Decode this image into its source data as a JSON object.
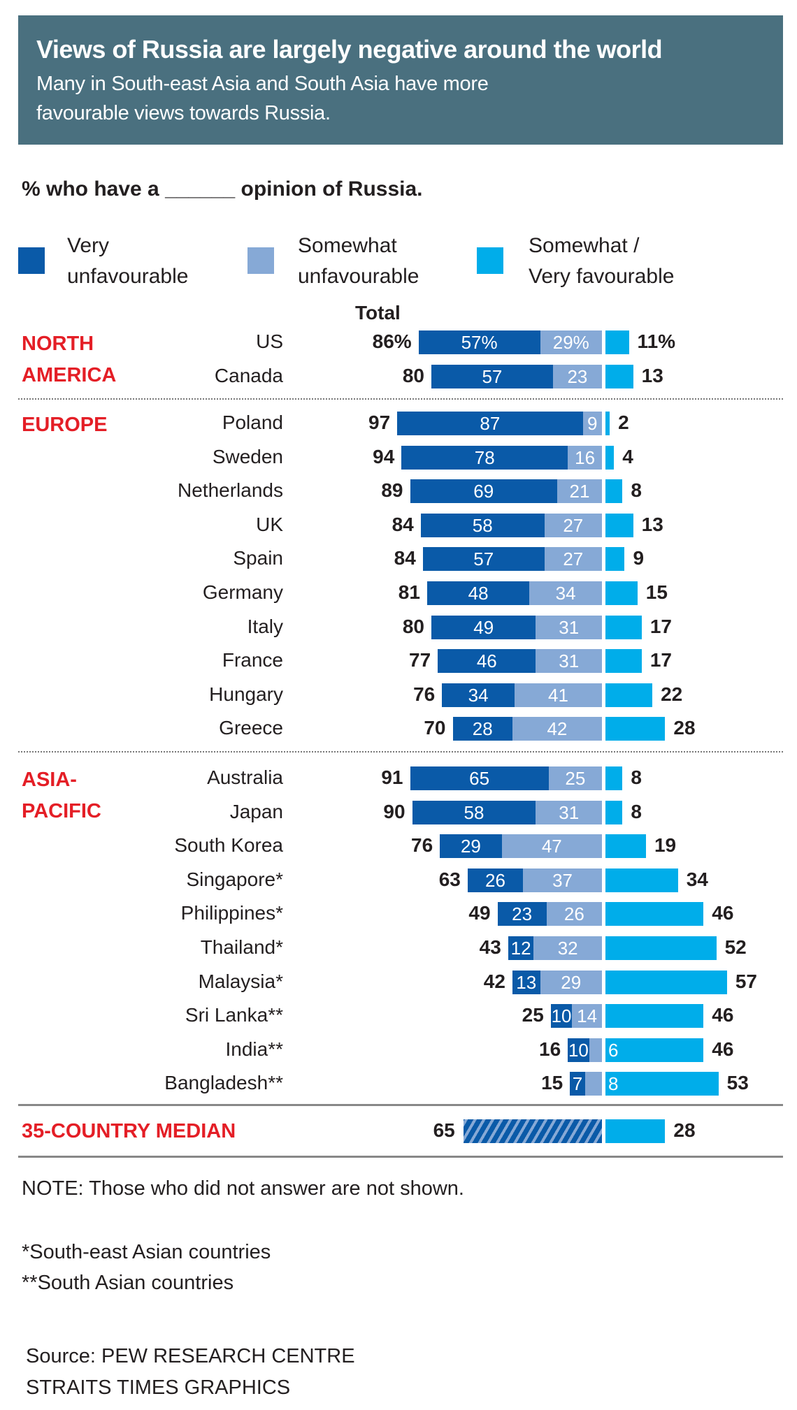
{
  "header": {
    "title": "Views of Russia are largely negative around the world",
    "subtitle_lines": [
      "Many in South-east Asia and South Asia have more",
      "favourable views towards Russia."
    ]
  },
  "question": "% who have a ______ opinion of Russia.",
  "colors": {
    "very_unfav": "#0a5aa8",
    "somewhat_unfav": "#86a9d6",
    "favourable": "#00adea",
    "region": "#e41e26",
    "header_bg": "#4a707f"
  },
  "legend": [
    {
      "lines": [
        "Very",
        "unfavourable"
      ]
    },
    {
      "lines": [
        "Somewhat",
        "unfavourable"
      ]
    },
    {
      "lines": [
        "Somewhat /",
        "Very favourable"
      ]
    }
  ],
  "total_label": "Total",
  "chart_data": {
    "type": "bar",
    "subtype": "diverging stacked horizontal bar",
    "series": [
      {
        "name": "Very unfavourable"
      },
      {
        "name": "Somewhat unfavourable"
      },
      {
        "name": "Somewhat / Very favourable"
      }
    ],
    "groups": [
      {
        "region": "NORTH AMERICA",
        "rows": [
          {
            "country": "US",
            "total": "86%",
            "very": 57,
            "very_label": "57%",
            "somewhat": 29,
            "somewhat_label": "29%",
            "fav": 11,
            "fav_label": "11%"
          },
          {
            "country": "Canada",
            "total": "80",
            "very": 57,
            "somewhat": 23,
            "fav": 13
          }
        ]
      },
      {
        "region": "EUROPE",
        "rows": [
          {
            "country": "Poland",
            "total": "97",
            "very": 87,
            "somewhat": 9,
            "fav": 2
          },
          {
            "country": "Sweden",
            "total": "94",
            "very": 78,
            "somewhat": 16,
            "fav": 4
          },
          {
            "country": "Netherlands",
            "total": "89",
            "very": 69,
            "somewhat": 21,
            "fav": 8
          },
          {
            "country": "UK",
            "total": "84",
            "very": 58,
            "somewhat": 27,
            "fav": 13
          },
          {
            "country": "Spain",
            "total": "84",
            "very": 57,
            "somewhat": 27,
            "fav": 9
          },
          {
            "country": "Germany",
            "total": "81",
            "very": 48,
            "somewhat": 34,
            "fav": 15
          },
          {
            "country": "Italy",
            "total": "80",
            "very": 49,
            "somewhat": 31,
            "fav": 17
          },
          {
            "country": "France",
            "total": "77",
            "very": 46,
            "somewhat": 31,
            "fav": 17
          },
          {
            "country": "Hungary",
            "total": "76",
            "very": 34,
            "somewhat": 41,
            "fav": 22
          },
          {
            "country": "Greece",
            "total": "70",
            "very": 28,
            "somewhat": 42,
            "fav": 28
          }
        ]
      },
      {
        "region": "ASIA-PACIFIC",
        "rows": [
          {
            "country": "Australia",
            "total": "91",
            "very": 65,
            "somewhat": 25,
            "fav": 8
          },
          {
            "country": "Japan",
            "total": "90",
            "very": 58,
            "somewhat": 31,
            "fav": 8
          },
          {
            "country": "South Korea",
            "total": "76",
            "very": 29,
            "somewhat": 47,
            "fav": 19
          },
          {
            "country": "Singapore*",
            "total": "63",
            "very": 26,
            "somewhat": 37,
            "fav": 34
          },
          {
            "country": "Philippines*",
            "total": "49",
            "very": 23,
            "somewhat": 26,
            "fav": 46
          },
          {
            "country": "Thailand*",
            "total": "43",
            "very": 12,
            "somewhat": 32,
            "fav": 52
          },
          {
            "country": "Malaysia*",
            "total": "42",
            "very": 13,
            "somewhat": 29,
            "fav": 57
          },
          {
            "country": "Sri Lanka**",
            "total": "25",
            "very": 10,
            "somewhat": 14,
            "fav": 46
          },
          {
            "country": "India**",
            "total": "16",
            "very": 10,
            "somewhat": 6,
            "somewhat_label": "",
            "fav": 46,
            "fav_inner": "6"
          },
          {
            "country": "Bangladesh**",
            "total": "15",
            "very": 7,
            "somewhat": 8,
            "somewhat_label": "",
            "fav": 53,
            "fav_inner": "8"
          }
        ]
      }
    ],
    "median": {
      "label": "35-COUNTRY MEDIAN",
      "unfavourable": 65,
      "favourable": 28
    }
  },
  "notes": {
    "note": "NOTE: Those who did not answer are not shown.",
    "foot1": "*South-east Asian countries",
    "foot2": "**South Asian countries",
    "source1": "Source: PEW RESEARCH CENTRE",
    "source2": "STRAITS TIMES GRAPHICS"
  }
}
